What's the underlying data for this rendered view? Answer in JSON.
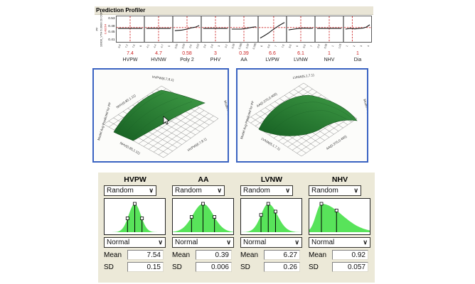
{
  "profiler": {
    "title": "Prediction Profiler",
    "response": {
      "label": "PF",
      "sublabel": "10000_VTH 6.3900 20 COR",
      "current_value": "0.48264",
      "y_ticks": [
        "0.53",
        "0.48",
        "0.45",
        "0.41"
      ]
    },
    "hline": 0.44,
    "factors": [
      {
        "name": "HVPW",
        "value": "7.4",
        "ticks": [
          "6.8",
          "7.2",
          "7.6",
          "8"
        ],
        "vline": 0.5,
        "points": [
          [
            0.05,
            0.47
          ],
          [
            0.95,
            0.47
          ]
        ]
      },
      {
        "name": "HVNW",
        "value": "4.7",
        "ticks": [
          "4.1",
          "4.4",
          "4.7",
          "5"
        ],
        "vline": 0.5,
        "points": [
          [
            0.05,
            0.47
          ],
          [
            0.95,
            0.47
          ]
        ]
      },
      {
        "name": "Poly 2",
        "value": "0.58",
        "ticks": [
          "0.56",
          "0.58",
          "0.6",
          "0.62"
        ],
        "vline": 0.5,
        "points": [
          [
            0.05,
            0.56
          ],
          [
            0.3,
            0.54
          ],
          [
            0.5,
            0.5
          ],
          [
            0.62,
            0.46
          ],
          [
            0.72,
            0.44
          ],
          [
            0.82,
            0.42
          ],
          [
            0.95,
            0.36
          ]
        ]
      },
      {
        "name": "PHV",
        "value": "3",
        "ticks": [
          "2.6",
          "2.8",
          "3",
          "3.2"
        ],
        "vline": 0.5,
        "points": [
          [
            0.05,
            0.47
          ],
          [
            0.95,
            0.47
          ]
        ]
      },
      {
        "name": "AA",
        "value": "0.39",
        "ticks": [
          "0.38",
          "0.385",
          "0.39",
          "0.395"
        ],
        "vline": 0.5,
        "points": [
          [
            0.05,
            0.5
          ],
          [
            0.4,
            0.5
          ],
          [
            0.6,
            0.47
          ],
          [
            0.8,
            0.43
          ],
          [
            0.95,
            0.41
          ]
        ]
      },
      {
        "name": "LVPW",
        "value": "6.6",
        "ticks": [
          "6",
          "6.5",
          "7",
          "7.5"
        ],
        "vline": 0.55,
        "points": [
          [
            0.05,
            0.85
          ],
          [
            0.2,
            0.76
          ],
          [
            0.35,
            0.66
          ],
          [
            0.5,
            0.54
          ],
          [
            0.62,
            0.45
          ],
          [
            0.78,
            0.34
          ],
          [
            0.95,
            0.24
          ]
        ]
      },
      {
        "name": "LVNW",
        "value": "6.1",
        "ticks": [
          "5.5",
          "6",
          "6.5",
          "7"
        ],
        "vline": 0.5,
        "points": [
          [
            0.05,
            0.53
          ],
          [
            0.25,
            0.5
          ],
          [
            0.45,
            0.47
          ],
          [
            0.65,
            0.46
          ],
          [
            0.82,
            0.47
          ],
          [
            0.95,
            0.46
          ]
        ]
      },
      {
        "name": "NHV",
        "value": "1",
        "ticks": [
          "0.9",
          "0.95",
          "1",
          "1.05"
        ],
        "vline": 0.5,
        "points": [
          [
            0.05,
            0.47
          ],
          [
            0.95,
            0.47
          ]
        ]
      },
      {
        "name": "Dia",
        "value": "1",
        "ticks": [
          "1",
          "2",
          "3",
          "4"
        ],
        "vline": 0.3,
        "points": [
          [
            0.05,
            0.5
          ],
          [
            0.22,
            0.47
          ],
          [
            0.4,
            0.49
          ],
          [
            0.55,
            0.47
          ],
          [
            0.7,
            0.46
          ],
          [
            0.82,
            0.42
          ],
          [
            0.95,
            0.33
          ]
        ]
      }
    ]
  },
  "surfaces": [
    {
      "top_label": "HVPW(6.7,8.1)",
      "upper_left_label": "NHV(0.85,1.11)",
      "bottom_left_label": "NHV(0.85,1.11)",
      "bottom_right_label": "HVPW(6.7,8.1)",
      "left_label": "Model Avg Predicted for PF",
      "right_label": "Model Avg Predicted for PF"
    },
    {
      "top_label": "LVNW(5.1,7.1)",
      "upper_left_label": "AA(0.375,0.405)",
      "bottom_left_label": "LVNW(5.1,7.1)",
      "bottom_right_label": "AA(0.375,0.405)",
      "left_label": "Model Avg Predicted for PF",
      "right_label": "Model Avg Predicted for PF"
    }
  ],
  "simulator": {
    "panels": [
      {
        "title": "HVPW",
        "random_label": "Random",
        "dist_label": "Normal",
        "mean_label": "Mean",
        "sd_label": "SD",
        "mean": "7.54",
        "sd": "0.15",
        "curve": {
          "mu": 0.5,
          "sl": 0.1,
          "sr": 0.1
        },
        "handles": [
          0.38,
          0.5,
          0.62
        ]
      },
      {
        "title": "AA",
        "random_label": "Random",
        "dist_label": "Normal",
        "mean_label": "Mean",
        "sd_label": "SD",
        "mean": "0.39",
        "sd": "0.006",
        "curve": {
          "mu": 0.5,
          "sl": 0.17,
          "sr": 0.17
        },
        "handles": [
          0.31,
          0.5,
          0.69
        ]
      },
      {
        "title": "LVNW",
        "random_label": "Random",
        "dist_label": "Normal",
        "mean_label": "Mean",
        "sd_label": "SD",
        "mean": "6.27",
        "sd": "0.26",
        "curve": {
          "mu": 0.45,
          "sl": 0.12,
          "sr": 0.15
        },
        "handles": [
          0.33,
          0.45,
          0.57
        ]
      },
      {
        "title": "NHV",
        "random_label": "Random",
        "dist_label": "Normal",
        "mean_label": "Mean",
        "sd_label": "SD",
        "mean": "0.92",
        "sd": "0.057",
        "curve": {
          "mu": 0.2,
          "sl": 0.09,
          "sr": 0.34
        },
        "handles": [
          0.2,
          0.45
        ]
      }
    ]
  },
  "icons": {
    "dropdown_chevron": "∨"
  },
  "colors": {
    "accent_blue": "#3a63c2",
    "dist_green": "#58e35a",
    "surface_green_dark": "#176023",
    "surface_green_light": "#3f9c46",
    "profiler_red": "#cc2222",
    "panel_beige": "#ece9d8",
    "titlebar_beige": "#e9e5d6"
  }
}
